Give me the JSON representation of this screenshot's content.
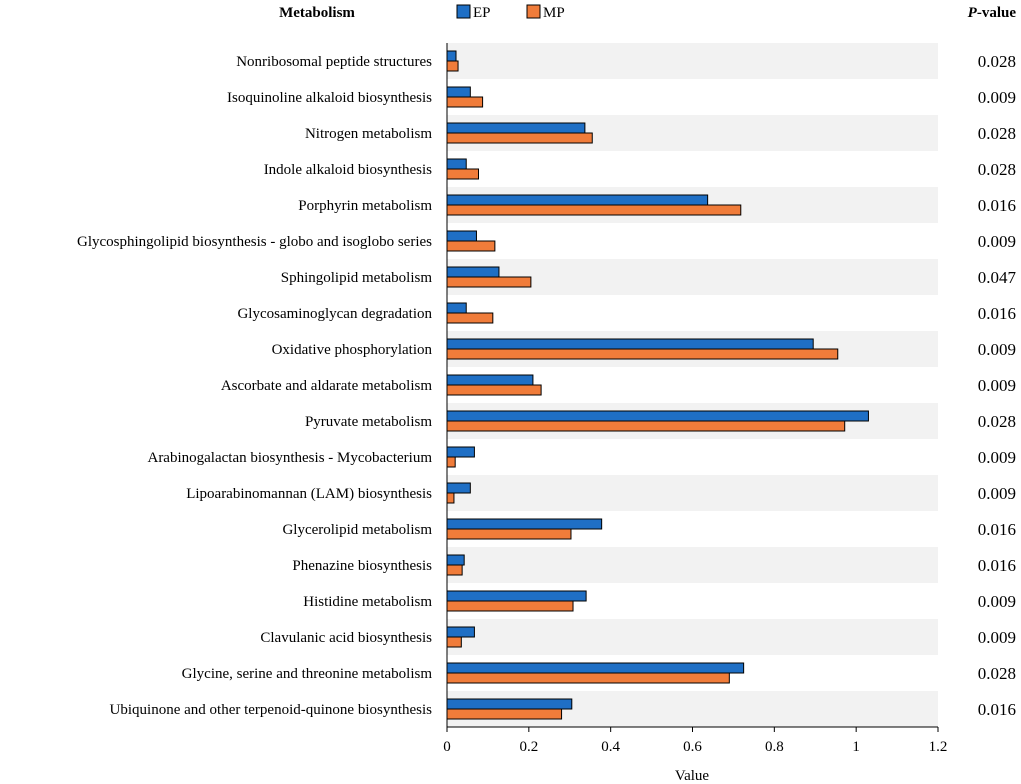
{
  "chart_data": {
    "type": "bar",
    "orientation": "horizontal",
    "title": "",
    "row_header": "Metabolism",
    "pvalue_header_italic": "P",
    "pvalue_header_rest": "-value",
    "xlabel": "Value",
    "ylabel": "",
    "xlim": [
      0,
      1.2
    ],
    "xticks": [
      "0",
      "0.2",
      "0.4",
      "0.6",
      "0.8",
      "1",
      "1.2"
    ],
    "xtick_values": [
      0,
      0.2,
      0.4,
      0.6,
      0.8,
      1.0,
      1.2
    ],
    "legend_position": "top",
    "categories": [
      "Nonribosomal peptide structures",
      "Isoquinoline alkaloid biosynthesis",
      "Nitrogen metabolism",
      "Indole alkaloid biosynthesis",
      "Porphyrin metabolism",
      "Glycosphingolipid biosynthesis - globo and isoglobo series",
      "Sphingolipid metabolism",
      "Glycosaminoglycan degradation",
      "Oxidative phosphorylation",
      "Ascorbate and aldarate metabolism",
      "Pyruvate metabolism",
      "Arabinogalactan biosynthesis - Mycobacterium",
      "Lipoarabinomannan (LAM) biosynthesis",
      "Glycerolipid metabolism",
      "Phenazine biosynthesis",
      "Histidine metabolism",
      "Clavulanic acid biosynthesis",
      "Glycine, serine and threonine metabolism",
      "Ubiquinone and other terpenoid-quinone biosynthesis"
    ],
    "p_values": [
      "0.028",
      "0.009",
      "0.028",
      "0.028",
      "0.016",
      "0.009",
      "0.047",
      "0.016",
      "0.009",
      "0.009",
      "0.028",
      "0.009",
      "0.009",
      "0.016",
      "0.016",
      "0.009",
      "0.009",
      "0.028",
      "0.016"
    ],
    "series": [
      {
        "name": "EP",
        "color": "#1f6fc5",
        "values": [
          0.022,
          0.057,
          0.337,
          0.047,
          0.637,
          0.072,
          0.127,
          0.047,
          0.895,
          0.21,
          1.03,
          0.067,
          0.057,
          0.378,
          0.042,
          0.34,
          0.067,
          0.725,
          0.305
        ]
      },
      {
        "name": "MP",
        "color": "#f07c3a",
        "values": [
          0.027,
          0.087,
          0.355,
          0.077,
          0.718,
          0.117,
          0.205,
          0.112,
          0.955,
          0.23,
          0.972,
          0.02,
          0.017,
          0.303,
          0.037,
          0.308,
          0.035,
          0.69,
          0.28
        ]
      }
    ],
    "band_color": "#f2f2f2"
  }
}
